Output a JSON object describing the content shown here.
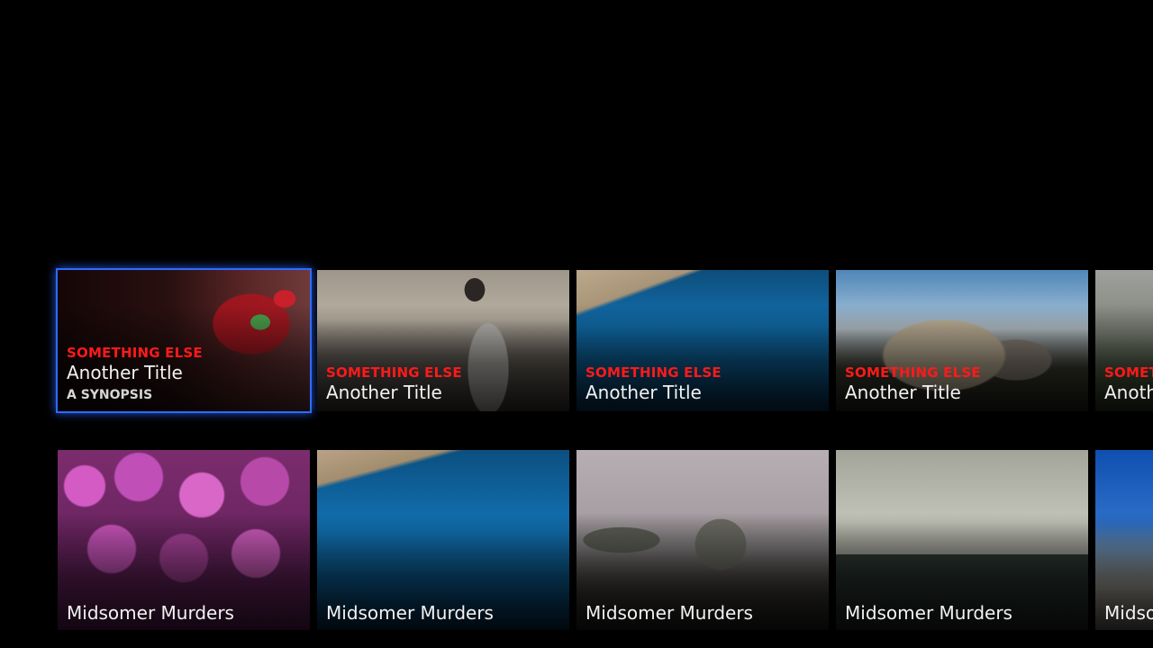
{
  "rows": [
    {
      "cards": [
        {
          "kicker": "SOMETHING ELSE",
          "title": "Another Title",
          "synopsis": "A SYNOPSIS",
          "artwork": "cocktail-glass",
          "focused": true
        },
        {
          "kicker": "SOMETHING ELSE",
          "title": "Another Title",
          "artwork": "man-looking-at-sky"
        },
        {
          "kicker": "SOMETHING ELSE",
          "title": "Another Title",
          "artwork": "blue-coastline"
        },
        {
          "kicker": "SOMETHING ELSE",
          "title": "Another Title",
          "artwork": "mountain-peak"
        },
        {
          "kicker": "SOMET",
          "title": "Anoth",
          "artwork": "misty-forest"
        }
      ]
    },
    {
      "cards": [
        {
          "title": "Midsomer Murders",
          "artwork": "pink-flowers"
        },
        {
          "title": "Midsomer Murders",
          "artwork": "blue-coastline"
        },
        {
          "title": "Midsomer Murders",
          "artwork": "sea-rocks"
        },
        {
          "title": "Midsomer Murders",
          "artwork": "city-skyline"
        },
        {
          "title": "Midso",
          "artwork": "beach"
        }
      ]
    }
  ],
  "colors": {
    "background": "#000000",
    "kicker": "#ff1a1a",
    "focus_ring": "#2f6bff",
    "title": "#f2f2f2"
  }
}
